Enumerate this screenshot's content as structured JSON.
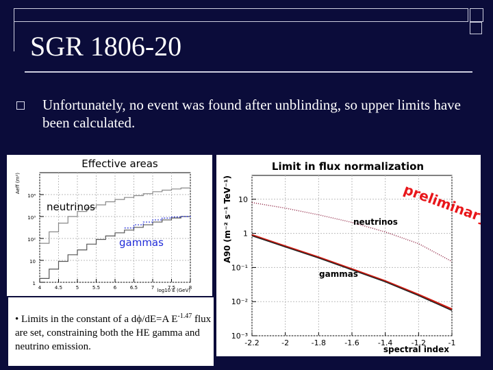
{
  "slide": {
    "title": "SGR 1806-20",
    "bullet_text": "Unfortunately, no event was found after unblinding, so upper limits have been calculated.",
    "caption": {
      "part1": "• Limits in the constant of a dϕ/dE=A E",
      "sup": "-1.47",
      "part2": " flux are set, constraining both the HE gamma and neutrino emission."
    }
  },
  "chart_data": [
    {
      "type": "line",
      "title": "Effective areas",
      "xlabel": "log10 E (GeV)",
      "ylabel": "Aeff (m²)",
      "xlim": [
        4,
        8
      ],
      "ylim": [
        1,
        100000
      ],
      "yscale": "log",
      "x_ticks": [
        "4",
        "4.5",
        "5",
        "5.5",
        "6",
        "6.5",
        "7",
        "7.5",
        "8"
      ],
      "y_ticks": [
        "1",
        "10",
        "10²",
        "10³",
        "10⁴"
      ],
      "annotations": [
        "neutrinos",
        "gammas"
      ],
      "series": [
        {
          "name": "neutrinos",
          "color": "#888888",
          "x": [
            4.0,
            4.25,
            4.5,
            4.75,
            5.0,
            5.25,
            5.5,
            5.75,
            6.0,
            6.25,
            6.5,
            6.75,
            7.0,
            7.25,
            7.5,
            7.75,
            8.0
          ],
          "values": [
            60,
            200,
            500,
            1000,
            1700,
            2500,
            3400,
            4700,
            6000,
            7400,
            9000,
            11000,
            13500,
            16000,
            18000,
            20000,
            21000
          ]
        },
        {
          "name": "gammas",
          "color": "#555555",
          "x": [
            4.0,
            4.25,
            4.5,
            4.75,
            5.0,
            5.25,
            5.5,
            5.75,
            6.0,
            6.25,
            6.5,
            6.75,
            7.0,
            7.25,
            7.5,
            7.75,
            8.0
          ],
          "values": [
            1.5,
            4,
            9,
            18,
            30,
            55,
            90,
            130,
            180,
            240,
            320,
            420,
            560,
            700,
            860,
            1000,
            1100
          ]
        },
        {
          "name": "neutrinos-blue",
          "color": "#1f2bd8",
          "x": [
            6.25,
            6.5,
            6.75,
            7.0,
            7.25,
            7.5,
            7.75,
            8.0
          ],
          "values": [
            300,
            420,
            560,
            700,
            850,
            950,
            1000,
            1050
          ]
        }
      ]
    },
    {
      "type": "line",
      "title": "Limit in flux normalization",
      "xlabel": "spectral index",
      "ylabel": "A90 (m⁻² s⁻¹ TeV⁻¹)",
      "xlim": [
        -2.2,
        -1
      ],
      "ylim": [
        0.001,
        50
      ],
      "yscale": "log",
      "x_ticks": [
        "-2.2",
        "-2",
        "-1.8",
        "-1.6",
        "-1.4",
        "-1.2",
        "-1"
      ],
      "y_ticks": [
        "10⁻³",
        "10⁻²",
        "10⁻¹",
        "1",
        "10"
      ],
      "annotations": [
        "neutrinos",
        "gammas",
        "preliminary"
      ],
      "series": [
        {
          "name": "neutrinos",
          "color": "#8a1a3a",
          "x": [
            -2.2,
            -2.0,
            -1.8,
            -1.6,
            -1.4,
            -1.2,
            -1.0
          ],
          "values": [
            8,
            5.5,
            3.5,
            2.1,
            1.1,
            0.5,
            0.15
          ]
        },
        {
          "name": "gammas",
          "color": "#cc1a10",
          "x": [
            -2.2,
            -2.0,
            -1.8,
            -1.6,
            -1.4,
            -1.2,
            -1.0
          ],
          "values": [
            0.9,
            0.42,
            0.2,
            0.09,
            0.04,
            0.016,
            0.006
          ]
        },
        {
          "name": "gammas-dark",
          "color": "#222222",
          "x": [
            -2.2,
            -2.0,
            -1.8,
            -1.6,
            -1.4,
            -1.2,
            -1.0
          ],
          "values": [
            0.85,
            0.4,
            0.19,
            0.085,
            0.038,
            0.015,
            0.0055
          ]
        }
      ]
    }
  ]
}
